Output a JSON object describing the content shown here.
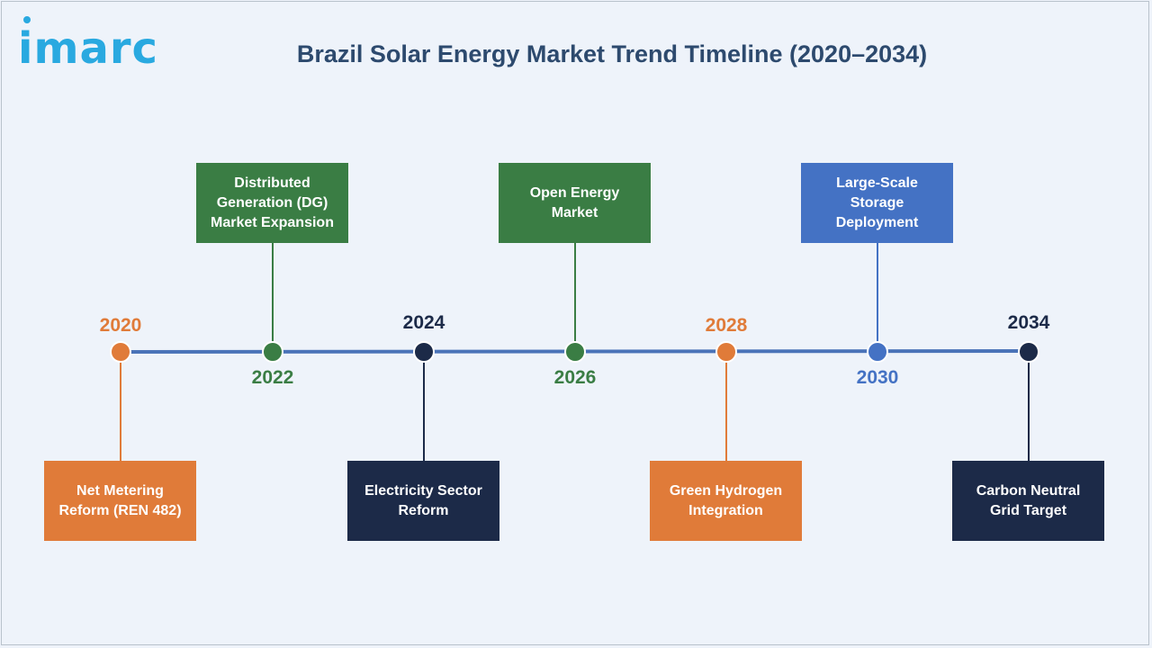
{
  "logo": {
    "text": "imarc"
  },
  "title": "Brazil Solar Energy Market Trend Timeline (2020–2034)",
  "colors": {
    "orange": "#e07b39",
    "green": "#3a7d44",
    "navy": "#1c2a48",
    "blue": "#4472c4",
    "line": "#4a73b8"
  },
  "milestones": [
    {
      "year": "2020",
      "label": "Net Metering Reform (REN 482)",
      "color": "orange"
    },
    {
      "year": "2022",
      "label": "Distributed Generation (DG) Market Expansion",
      "color": "green"
    },
    {
      "year": "2024",
      "label": "Electricity Sector Reform",
      "color": "navy"
    },
    {
      "year": "2026",
      "label": "Open Energy Market",
      "color": "green"
    },
    {
      "year": "2028",
      "label": "Green Hydrogen Integration",
      "color": "orange"
    },
    {
      "year": "2030",
      "label": "Large-Scale Storage Deployment",
      "color": "blue"
    },
    {
      "year": "2034",
      "label": "Carbon Neutral Grid Target",
      "color": "navy"
    }
  ]
}
